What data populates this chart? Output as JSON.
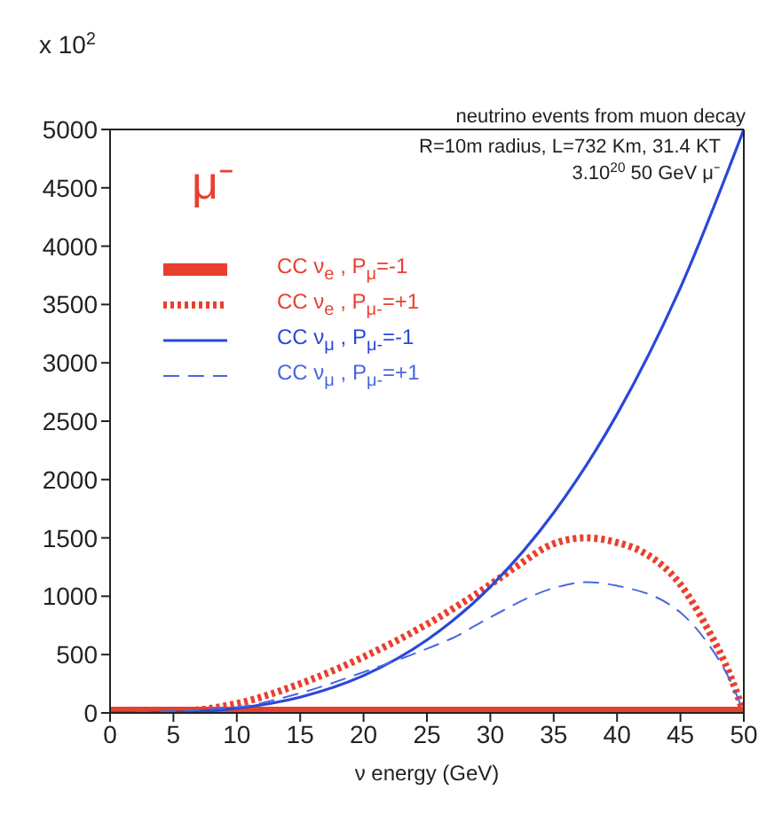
{
  "chart_data": {
    "type": "line",
    "xlabel": "ν energy (GeV)",
    "annotations": [
      "x 10$^{2}$",
      "neutrino events from muon decay",
      "R=10m radius, L=732 Km, 31.4 KT",
      "3.10$^{20}$ 50 GeV μ⁻",
      "μ⁻"
    ],
    "xlim": [
      0,
      50
    ],
    "xticks": [
      0,
      5,
      10,
      15,
      20,
      25,
      30,
      35,
      40,
      45,
      50
    ],
    "ylim": [
      0,
      5000
    ],
    "yticks": [
      0,
      500,
      1000,
      1500,
      2000,
      2500,
      3000,
      3500,
      4000,
      4500,
      5000
    ],
    "grid": false,
    "legend": "top left",
    "series": [
      {
        "name": "CC ν$_{e}$ , P$_{μ}$=-1",
        "color": "#e8402e",
        "line_style": "solid",
        "x": [
          0,
          50
        ],
        "values": [
          0,
          0
        ]
      },
      {
        "name": "CC ν$_{e}$ , P$_{μ-}$=+1",
        "color": "#e8402e",
        "line_style": "dotted",
        "x": [
          0,
          5,
          10,
          15,
          20,
          25,
          30,
          32,
          35,
          37.5,
          40,
          42,
          45,
          47,
          49,
          50
        ],
        "values": [
          0,
          10,
          80,
          250,
          480,
          760,
          1100,
          1250,
          1450,
          1500,
          1460,
          1380,
          1100,
          750,
          300,
          0
        ]
      },
      {
        "name": "CC ν$_{μ}$ , P$_{μ-}$=-1",
        "color": "#2a48d8",
        "line_style": "solid",
        "x": [
          0,
          5,
          10,
          15,
          20,
          25,
          30,
          35,
          40,
          45,
          50
        ],
        "values": [
          0,
          5,
          40,
          135,
          320,
          625,
          1080,
          1715,
          2560,
          3645,
          5000
        ]
      },
      {
        "name": "CC ν$_{μ}$ , P$_{μ-}$=+1",
        "color": "#4a66e0",
        "line_style": "dashed",
        "x": [
          0,
          10,
          15,
          20,
          25,
          27,
          30,
          35,
          37.5,
          40,
          45,
          47,
          49,
          50
        ],
        "values": [
          0,
          50,
          170,
          350,
          550,
          640,
          820,
          1070,
          1120,
          1090,
          860,
          620,
          260,
          0
        ]
      }
    ]
  }
}
